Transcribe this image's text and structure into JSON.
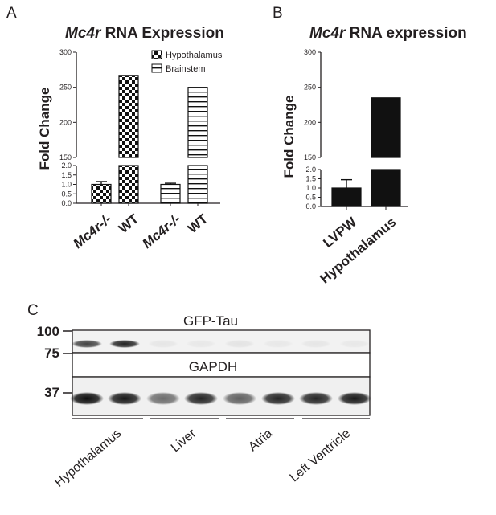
{
  "panels": {
    "a": {
      "letter": "A",
      "title_italic": "Mc4r",
      "title_rest": " RNA Expression"
    },
    "b": {
      "letter": "B",
      "title_italic": "Mc4r",
      "title_rest": " RNA expression"
    },
    "c": {
      "letter": "C"
    }
  },
  "chart_data": [
    {
      "id": "A",
      "type": "bar",
      "title": "Mc4r RNA Expression",
      "ylabel": "Fold Change",
      "y_axis_broken": true,
      "y_segments": [
        {
          "range": [
            0,
            2.0
          ]
        },
        {
          "range": [
            150,
            300
          ]
        }
      ],
      "yticks_lower": [
        "0.0",
        "0.5",
        "1.0",
        "1.5",
        "2.0"
      ],
      "yticks_upper": [
        "150",
        "200",
        "250",
        "300"
      ],
      "legend_position": "top-right",
      "series": [
        {
          "name": "Hypothalamus",
          "pattern": "checker"
        },
        {
          "name": "Brainstem",
          "pattern": "horizontal-stripes"
        }
      ],
      "categories": [
        {
          "label": "Mc4r-/-",
          "italic": true,
          "series": "Hypothalamus",
          "value": 1.0,
          "error": 0.15
        },
        {
          "label": "WT",
          "italic": false,
          "series": "Hypothalamus",
          "value": 267,
          "error": 0
        },
        {
          "label": "Mc4r-/-",
          "italic": true,
          "series": "Brainstem",
          "value": 1.0,
          "error": 0.06
        },
        {
          "label": "WT",
          "italic": false,
          "series": "Brainstem",
          "value": 250,
          "error": 0
        }
      ]
    },
    {
      "id": "B",
      "type": "bar",
      "title": "Mc4r RNA expression",
      "ylabel": "Fold Change",
      "y_axis_broken": true,
      "y_segments": [
        {
          "range": [
            0,
            2.0
          ]
        },
        {
          "range": [
            150,
            300
          ]
        }
      ],
      "yticks_lower": [
        "0.0",
        "0.5",
        "1.0",
        "1.5",
        "2.0"
      ],
      "yticks_upper": [
        "150",
        "200",
        "250",
        "300"
      ],
      "categories": [
        {
          "label": "LVPW",
          "value": 1.0,
          "error": 0.45
        },
        {
          "label": "Hypothalamus",
          "value": 235,
          "error": 0
        }
      ],
      "colors": {
        "bar": "#111111"
      }
    }
  ],
  "blot": {
    "markers": {
      "m100": "100",
      "m75": "75",
      "m37": "37"
    },
    "top_label": "GFP-Tau",
    "bottom_label": "GAPDH",
    "tissues": [
      "Hypothalamus",
      "Liver",
      "Atria",
      "Left Ventricle"
    ],
    "gfp_tau_intensity": [
      0.85,
      1.0,
      0.06,
      0.05,
      0.07,
      0.05,
      0.06,
      0.05
    ],
    "gapdh_intensity": [
      0.95,
      0.9,
      0.55,
      0.85,
      0.6,
      0.85,
      0.85,
      0.9
    ]
  }
}
